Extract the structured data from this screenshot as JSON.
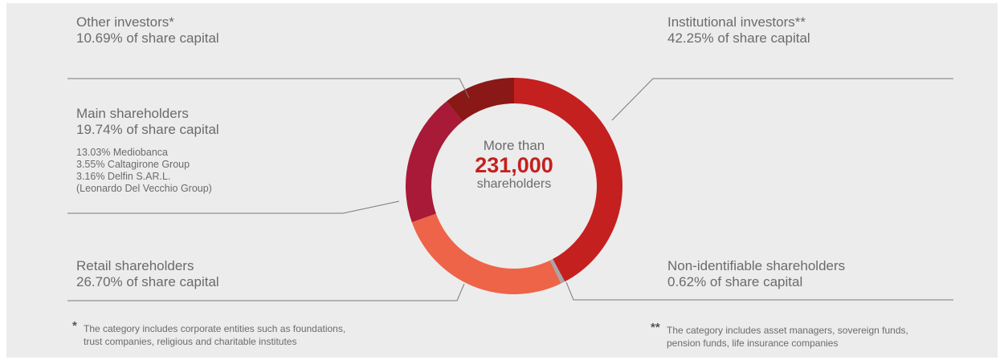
{
  "chart_data": {
    "type": "pie",
    "style": "donut",
    "center_label": {
      "line1": "More than",
      "value": "231,000",
      "line2": "shareholders"
    },
    "slices": [
      {
        "label": "Institutional investors**",
        "value": 42.25,
        "value_text": "42.25% of share capital",
        "color": "#c4201f"
      },
      {
        "label": "Non-identifiable shareholders",
        "value": 0.62,
        "value_text": "0.62% of share capital",
        "color": "#a7a7a7"
      },
      {
        "label": "Retail shareholders",
        "value": 26.7,
        "value_text": "26.70% of share capital",
        "color": "#ee6448"
      },
      {
        "label": "Main shareholders",
        "value": 19.74,
        "value_text": "19.74% of share capital",
        "color": "#a81a38"
      },
      {
        "label": "Other investors*",
        "value": 10.69,
        "value_text": "10.69% of share capital",
        "color": "#891816"
      }
    ],
    "main_shareholders_detail": [
      "13.03%  Mediobanca",
      "3.55%  Caltagirone Group",
      "3.16% Delfin S.AR.L.",
      "(Leonardo Del Vecchio Group)"
    ]
  },
  "notes": {
    "single": {
      "marker": "*",
      "lines": [
        "The category includes corporate entities such as foundations,",
        "trust companies, religious and charitable institutes"
      ]
    },
    "double": {
      "marker": "**",
      "lines": [
        "The category includes asset managers, sovereign funds,",
        "pension funds, life insurance companies"
      ]
    }
  }
}
